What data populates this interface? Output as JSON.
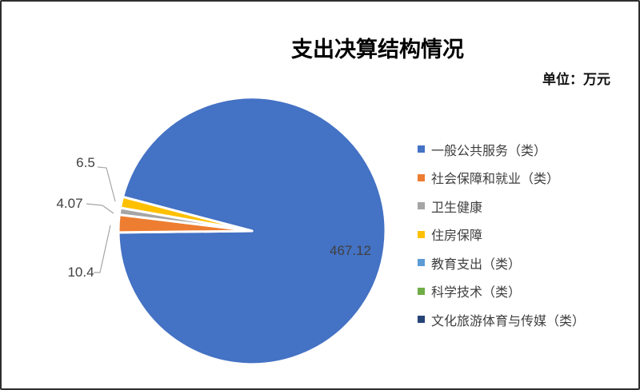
{
  "chart_data": {
    "type": "pie",
    "title": "支出决算结构情况",
    "unit_label": "单位：万元",
    "legend_position": "right",
    "start_angle": 284.8,
    "series": [
      {
        "name": "一般公共服务（类）",
        "value": 467.12,
        "color": "#4472C4",
        "label": "467.12"
      },
      {
        "name": "社会保障和就业（类）",
        "value": 10.4,
        "color": "#ED7D31",
        "label": "10.4"
      },
      {
        "name": "卫生健康",
        "value": 4.07,
        "color": "#A5A5A5",
        "label": "4.07"
      },
      {
        "name": "住房保障",
        "value": 6.5,
        "color": "#FFC000",
        "label": "6.5"
      },
      {
        "name": "教育支出（类）",
        "value": 0,
        "color": "#5B9BD5",
        "label": ""
      },
      {
        "name": "科学技术（类）",
        "value": 0,
        "color": "#70AD47",
        "label": ""
      },
      {
        "name": "文化旅游体育与传媒（类）",
        "value": 0,
        "color": "#264478",
        "label": ""
      }
    ]
  }
}
